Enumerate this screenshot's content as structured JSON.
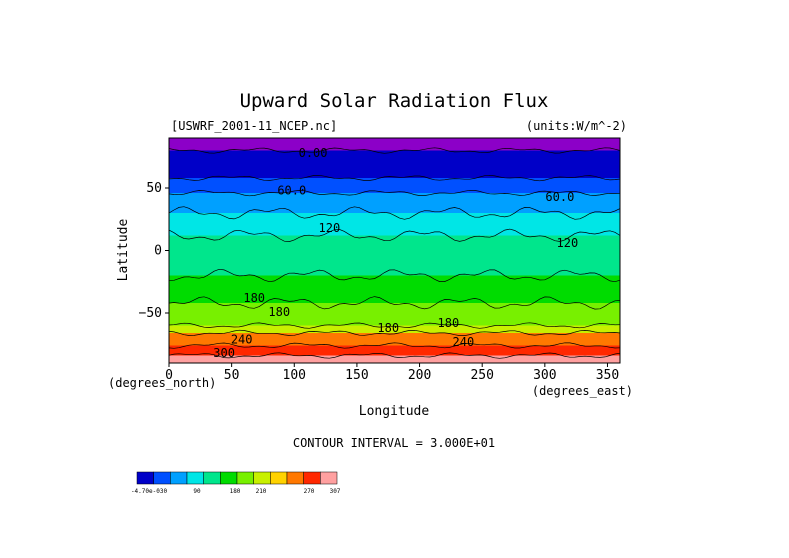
{
  "chart_data": {
    "type": "heatmap",
    "title": "Upward Solar Radiation Flux",
    "source_label": "[USWRF_2001-11_NCEP.nc]",
    "units_label": "(units:W/m^-2)",
    "xlabel": "Longitude",
    "ylabel": "Latitude",
    "x_unit_label": "(degrees_east)",
    "y_unit_label": "(degrees_north)",
    "xlim": [
      0,
      360
    ],
    "ylim": [
      -90,
      90
    ],
    "x_ticks": [
      0,
      50,
      100,
      150,
      200,
      250,
      300,
      350
    ],
    "y_ticks": [
      50,
      0,
      -50
    ],
    "contour_interval_text": "CONTOUR INTERVAL = 3.000E+01",
    "contour_labels": [
      {
        "text": "0.00",
        "lon": 115,
        "lat": 78
      },
      {
        "text": "60.0",
        "lon": 98,
        "lat": 48
      },
      {
        "text": "60.0",
        "lon": 312,
        "lat": 43
      },
      {
        "text": "120",
        "lon": 128,
        "lat": 18
      },
      {
        "text": "120",
        "lon": 318,
        "lat": 6
      },
      {
        "text": "180",
        "lon": 68,
        "lat": -38
      },
      {
        "text": "180",
        "lon": 88,
        "lat": -49
      },
      {
        "text": "180",
        "lon": 175,
        "lat": -62
      },
      {
        "text": "180",
        "lon": 223,
        "lat": -58
      },
      {
        "text": "240",
        "lon": 58,
        "lat": -71
      },
      {
        "text": "240",
        "lon": 235,
        "lat": -73
      },
      {
        "text": "300",
        "lon": 44,
        "lat": -82
      }
    ],
    "latitude_bands": [
      {
        "lat_from": 90,
        "lat_to": 80,
        "value": 0
      },
      {
        "lat_from": 80,
        "lat_to": 58,
        "value": 15
      },
      {
        "lat_from": 58,
        "lat_to": 46,
        "value": 45
      },
      {
        "lat_from": 46,
        "lat_to": 30,
        "value": 75
      },
      {
        "lat_from": 30,
        "lat_to": 12,
        "value": 105
      },
      {
        "lat_from": 12,
        "lat_to": -20,
        "value": 135
      },
      {
        "lat_from": -20,
        "lat_to": -42,
        "value": 165
      },
      {
        "lat_from": -42,
        "lat_to": -60,
        "value": 195
      },
      {
        "lat_from": -60,
        "lat_to": -66,
        "value": 225
      },
      {
        "lat_from": -66,
        "lat_to": -76,
        "value": 255
      },
      {
        "lat_from": -76,
        "lat_to": -84,
        "value": 285
      },
      {
        "lat_from": -84,
        "lat_to": -90,
        "value": 300
      }
    ],
    "colorbar": {
      "tick_labels": [
        "-4.70e-030",
        "90",
        "180",
        "210",
        "270",
        "307"
      ],
      "colors": [
        "#0000c8",
        "#0050ff",
        "#00a0ff",
        "#00e6e6",
        "#00e68c",
        "#00dc00",
        "#78f000",
        "#c8f000",
        "#ffd200",
        "#ff7800",
        "#ff2800",
        "#ffa0a0"
      ]
    },
    "band_colors": [
      "#8c00c8",
      "#0000c8",
      "#0050ff",
      "#00a0ff",
      "#00e6e6",
      "#00e68c",
      "#00dc00",
      "#78f000",
      "#c8f000",
      "#ff7800",
      "#ff2800",
      "#ffa0a0"
    ]
  }
}
